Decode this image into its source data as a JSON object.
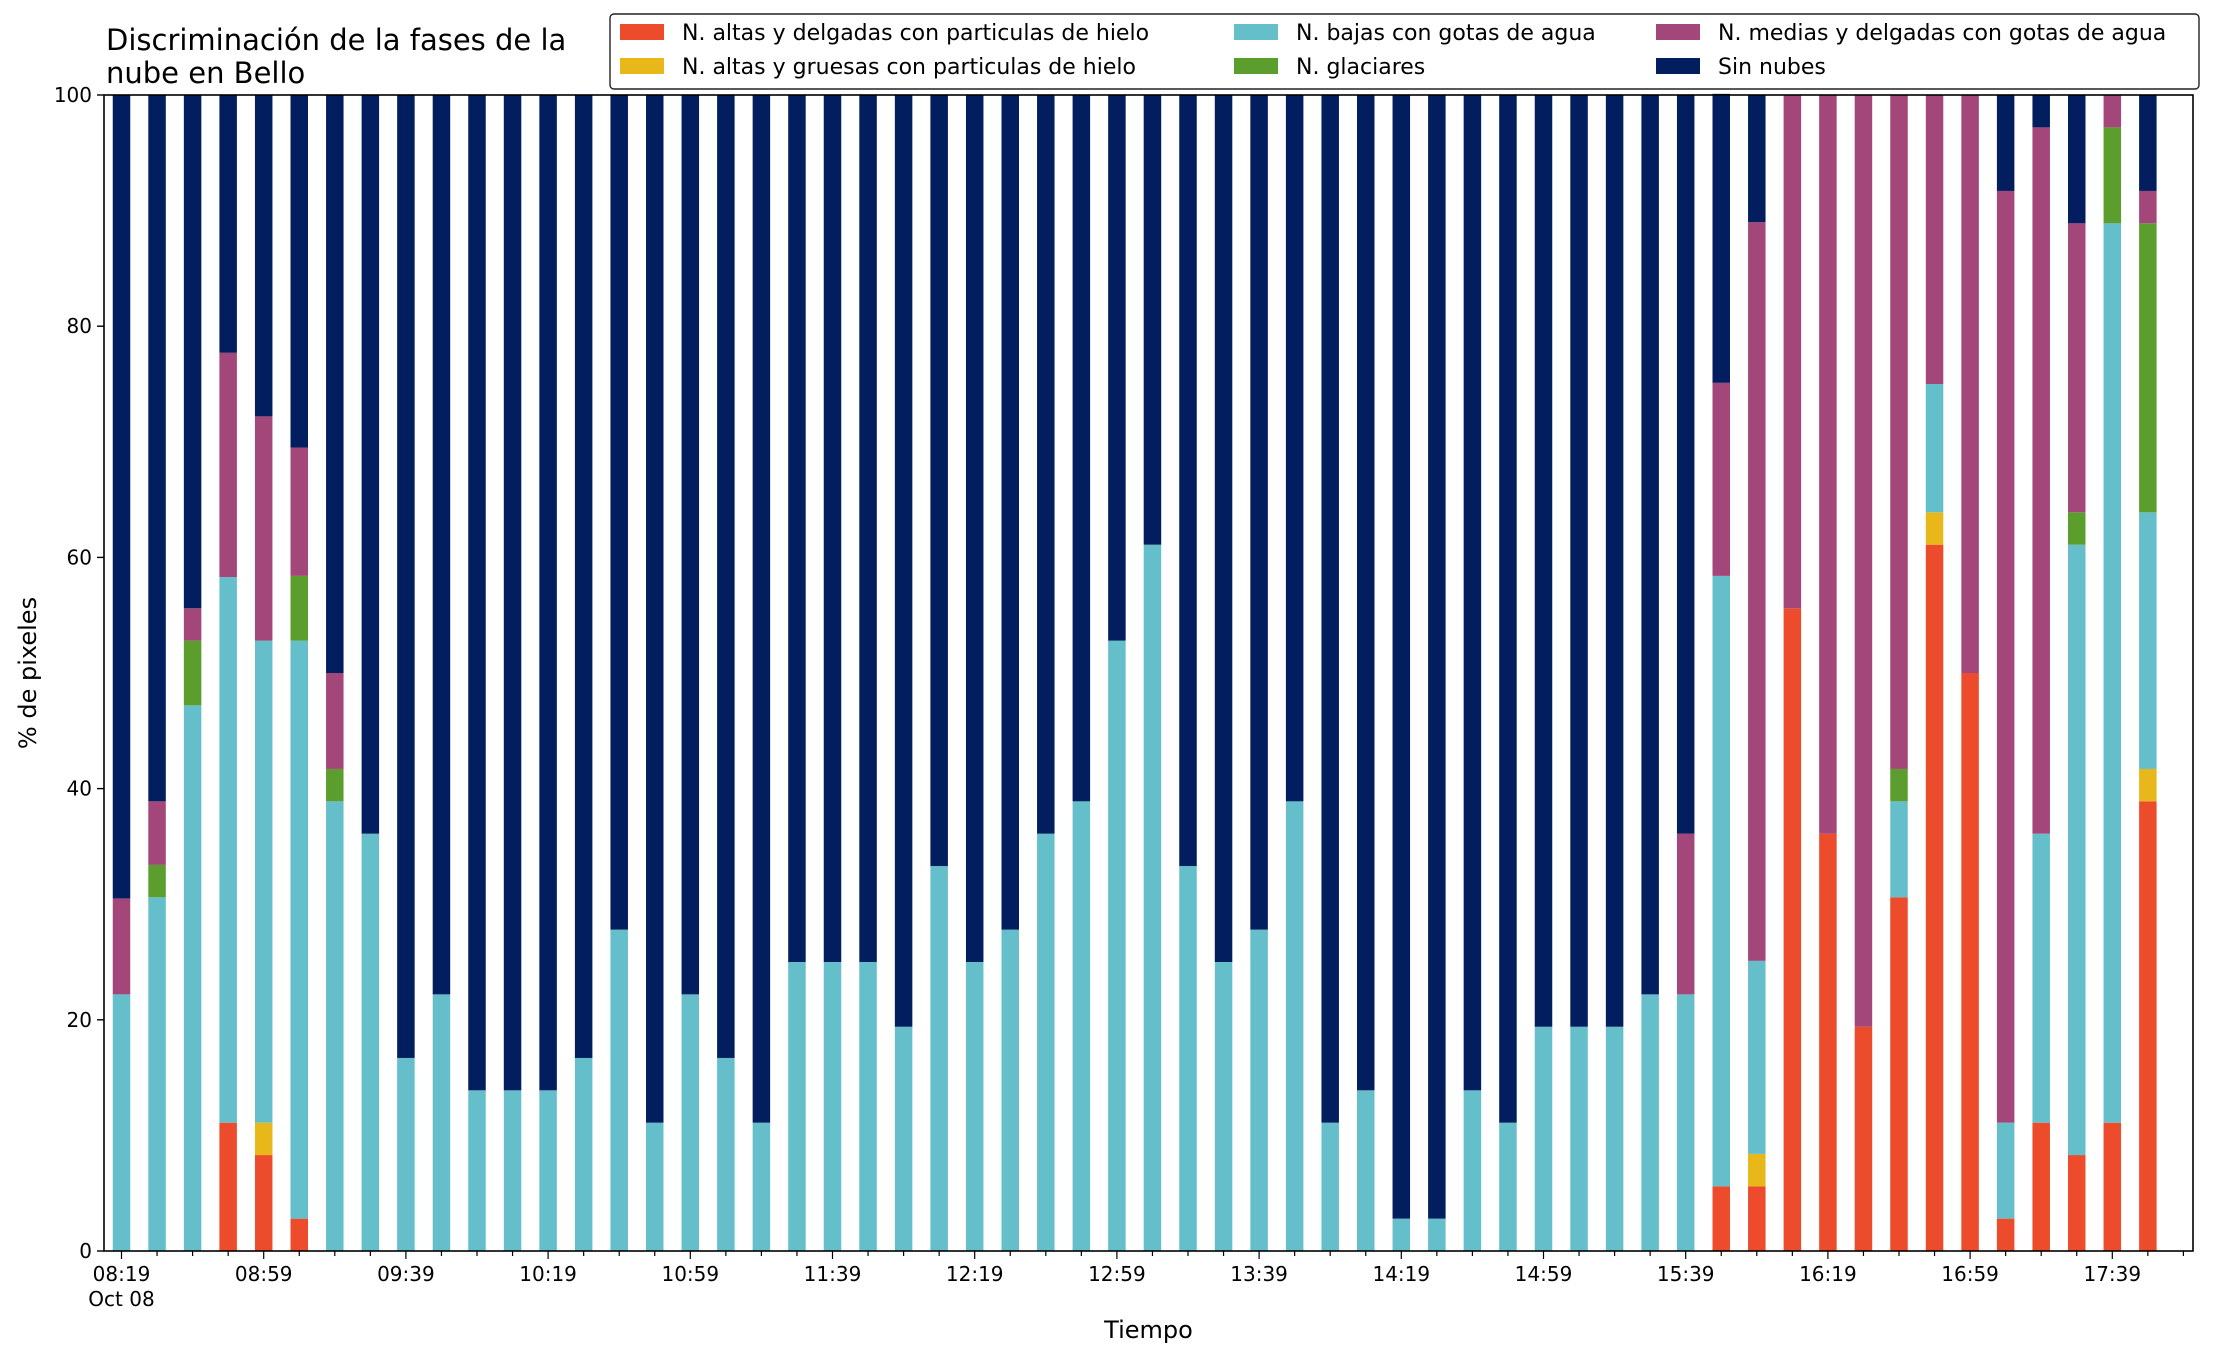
{
  "chart_data": {
    "type": "bar",
    "stacked": true,
    "title_lines": [
      "Discriminación de la fases de la",
      "nube en Bello"
    ],
    "xlabel": "Tiempo",
    "ylabel": "% de pixeles",
    "ylim": [
      0,
      100
    ],
    "yticks": [
      "0",
      "20",
      "40",
      "60",
      "80",
      "100"
    ],
    "xtick_labels": [
      "08:19",
      "08:59",
      "09:39",
      "10:19",
      "10:59",
      "11:39",
      "12:19",
      "12:59",
      "13:39",
      "14:19",
      "14:59",
      "15:39",
      "16:19",
      "16:59",
      "17:39"
    ],
    "xtick_date": "Oct 08",
    "grid": false,
    "legend_position": "top-right",
    "categories": [
      "08:19",
      "08:29",
      "08:39",
      "08:49",
      "08:59",
      "09:09",
      "09:19",
      "09:29",
      "09:39",
      "09:49",
      "09:59",
      "10:09",
      "10:19",
      "10:29",
      "10:39",
      "10:49",
      "10:59",
      "11:09",
      "11:19",
      "11:29",
      "11:39",
      "11:49",
      "11:59",
      "12:09",
      "12:19",
      "12:29",
      "12:39",
      "12:49",
      "12:59",
      "13:09",
      "13:19",
      "13:29",
      "13:39",
      "13:49",
      "13:59",
      "14:09",
      "14:19",
      "14:29",
      "14:39",
      "14:49",
      "14:59",
      "15:09",
      "15:19",
      "15:29",
      "15:39",
      "15:49",
      "15:59",
      "16:09",
      "16:19",
      "16:29",
      "16:39",
      "16:49",
      "16:59",
      "17:09",
      "17:19",
      "17:29",
      "17:39",
      "17:49"
    ],
    "series": [
      {
        "name": "N. altas y delgadas con particulas de hielo",
        "color": "#ec4c2c",
        "values": [
          0,
          0,
          0,
          11.1,
          8.3,
          2.8,
          0,
          0,
          0,
          0,
          0,
          0,
          0,
          0,
          0,
          0,
          0,
          0,
          0,
          0,
          0,
          0,
          0,
          0,
          0,
          0,
          0,
          0,
          0,
          0,
          0,
          0,
          0,
          0,
          0,
          0,
          0,
          0,
          0,
          0,
          0,
          0,
          0,
          0,
          0,
          5.6,
          5.6,
          55.6,
          36.1,
          19.4,
          30.6,
          61.1,
          50.0,
          2.8,
          11.1,
          8.3,
          11.1,
          38.9
        ]
      },
      {
        "name": "N. altas y gruesas con particulas de hielo",
        "color": "#e8b71a",
        "values": [
          0,
          0,
          0,
          0,
          2.8,
          0,
          0,
          0,
          0,
          0,
          0,
          0,
          0,
          0,
          0,
          0,
          0,
          0,
          0,
          0,
          0,
          0,
          0,
          0,
          0,
          0,
          0,
          0,
          0,
          0,
          0,
          0,
          0,
          0,
          0,
          0,
          0,
          0,
          0,
          0,
          0,
          0,
          0,
          0,
          0,
          0,
          2.8,
          0,
          0,
          0,
          0,
          2.8,
          0,
          0,
          0,
          0,
          0,
          2.8
        ]
      },
      {
        "name": "N. bajas con gotas de agua",
        "color": "#65bfcb",
        "values": [
          22.2,
          30.6,
          47.2,
          47.2,
          41.7,
          50.0,
          38.9,
          36.1,
          16.7,
          22.2,
          13.9,
          13.9,
          13.9,
          16.7,
          27.8,
          11.1,
          22.2,
          16.7,
          11.1,
          25.0,
          25.0,
          25.0,
          19.4,
          33.3,
          25.0,
          27.8,
          36.1,
          38.9,
          52.8,
          61.1,
          33.3,
          25.0,
          27.8,
          38.9,
          11.1,
          13.9,
          2.8,
          2.8,
          13.9,
          11.1,
          19.4,
          19.4,
          19.4,
          22.2,
          22.2,
          52.8,
          16.7,
          0,
          0,
          0,
          8.3,
          11.1,
          0,
          8.3,
          25.0,
          52.8,
          77.8,
          22.2
        ]
      },
      {
        "name": "N. glaciares",
        "color": "#5c9e2e",
        "values": [
          0,
          2.8,
          5.6,
          0,
          0,
          5.6,
          2.8,
          0,
          0,
          0,
          0,
          0,
          0,
          0,
          0,
          0,
          0,
          0,
          0,
          0,
          0,
          0,
          0,
          0,
          0,
          0,
          0,
          0,
          0,
          0,
          0,
          0,
          0,
          0,
          0,
          0,
          0,
          0,
          0,
          0,
          0,
          0,
          0,
          0,
          0,
          0,
          0,
          0,
          0,
          0,
          2.8,
          0,
          0,
          0,
          0,
          2.8,
          8.3,
          25.0
        ]
      },
      {
        "name": "N. medias y delgadas con gotas de agua",
        "color": "#a3477b",
        "values": [
          8.3,
          5.5,
          2.8,
          19.4,
          19.4,
          11.1,
          8.3,
          0,
          0,
          0,
          0,
          0,
          0,
          0,
          0,
          0,
          0,
          0,
          0,
          0,
          0,
          0,
          0,
          0,
          0,
          0,
          0,
          0,
          0,
          0,
          0,
          0,
          0,
          0,
          0,
          0,
          0,
          0,
          0,
          0,
          0,
          0,
          0,
          0,
          13.9,
          16.7,
          63.9,
          44.4,
          63.9,
          80.6,
          58.3,
          25.0,
          50.0,
          80.6,
          61.1,
          25.0,
          2.8,
          2.8
        ]
      },
      {
        "name": "Sin nubes",
        "color": "#031e5e",
        "values": [
          69.5,
          61.1,
          44.4,
          22.3,
          27.8,
          30.5,
          50.0,
          63.9,
          83.3,
          77.8,
          86.1,
          86.1,
          86.1,
          83.3,
          72.2,
          88.9,
          77.8,
          83.3,
          88.9,
          75.0,
          75.0,
          75.0,
          80.6,
          66.7,
          75.0,
          72.2,
          63.9,
          61.1,
          47.2,
          38.9,
          66.7,
          75.0,
          72.2,
          61.1,
          88.9,
          86.1,
          97.2,
          97.2,
          86.1,
          88.9,
          80.6,
          80.6,
          80.6,
          77.8,
          63.9,
          25.0,
          11.0,
          0,
          0,
          0,
          0,
          0,
          0,
          8.3,
          2.8,
          11.1,
          0,
          8.3
        ]
      }
    ]
  }
}
